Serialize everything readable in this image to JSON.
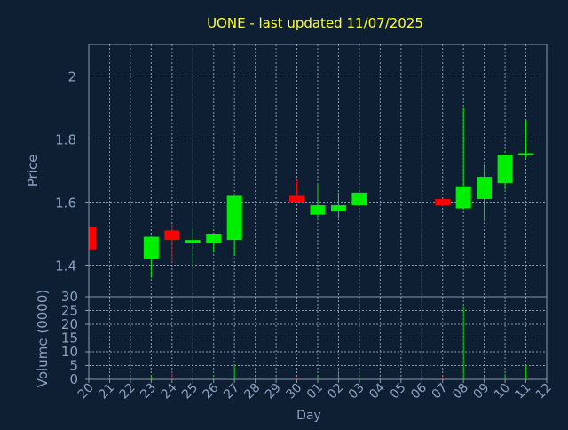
{
  "chart_data": {
    "type": "candlestick",
    "title": "UONE - last updated 11/07/2025",
    "xlabel": "Day",
    "colors": {
      "background": "#0f1f33",
      "title": "#ffff33",
      "axis_text": "#8aa0c0",
      "frame": "#8899aa",
      "grid": "#8899aa",
      "up": "#00ee00",
      "down": "#ff0000",
      "volume": "#00cc00"
    },
    "x_ticks": [
      "20",
      "21",
      "22",
      "23",
      "24",
      "25",
      "26",
      "27",
      "28",
      "29",
      "30",
      "01",
      "02",
      "03",
      "04",
      "05",
      "06",
      "07",
      "08",
      "09",
      "10",
      "11",
      "12"
    ],
    "price_panel": {
      "ylabel": "Price",
      "ylim": [
        1.3,
        2.1
      ],
      "yticks": [
        {
          "v": 1.4,
          "label": "1.4"
        },
        {
          "v": 1.6,
          "label": "1.6"
        },
        {
          "v": 1.8,
          "label": "1.8"
        },
        {
          "v": 2.0,
          "label": "2"
        }
      ]
    },
    "volume_panel": {
      "ylabel": "Volume (0000)",
      "ylim": [
        0,
        30
      ],
      "yticks": [
        {
          "v": 0,
          "label": "0"
        },
        {
          "v": 5,
          "label": "5"
        },
        {
          "v": 10,
          "label": "10"
        },
        {
          "v": 15,
          "label": "15"
        },
        {
          "v": 20,
          "label": "20"
        },
        {
          "v": 25,
          "label": "25"
        },
        {
          "v": 30,
          "label": "30"
        }
      ]
    },
    "candles": [
      {
        "day": "20",
        "open": 1.52,
        "high": 1.52,
        "low": 1.45,
        "close": 1.45,
        "volume": 0.3
      },
      {
        "day": "23",
        "open": 1.42,
        "high": 1.49,
        "low": 1.36,
        "close": 1.49,
        "volume": 1.2
      },
      {
        "day": "24",
        "open": 1.51,
        "high": 1.53,
        "low": 1.41,
        "close": 1.48,
        "volume": 2.5
      },
      {
        "day": "25",
        "open": 1.47,
        "high": 1.52,
        "low": 1.4,
        "close": 1.48,
        "volume": 0.8
      },
      {
        "day": "26",
        "open": 1.47,
        "high": 1.5,
        "low": 1.44,
        "close": 1.5,
        "volume": 0.6
      },
      {
        "day": "27",
        "open": 1.48,
        "high": 1.62,
        "low": 1.43,
        "close": 1.62,
        "volume": 5.0
      },
      {
        "day": "30",
        "open": 1.62,
        "high": 1.67,
        "low": 1.6,
        "close": 1.6,
        "volume": 0.7
      },
      {
        "day": "01",
        "open": 1.56,
        "high": 1.66,
        "low": 1.55,
        "close": 1.59,
        "volume": 1.0
      },
      {
        "day": "02",
        "open": 1.57,
        "high": 1.63,
        "low": 1.55,
        "close": 1.59,
        "volume": 3.0
      },
      {
        "day": "03",
        "open": 1.59,
        "high": 1.63,
        "low": 1.59,
        "close": 1.63,
        "volume": 0.6
      },
      {
        "day": "07",
        "open": 1.61,
        "high": 1.61,
        "low": 1.59,
        "close": 1.59,
        "volume": 0.8
      },
      {
        "day": "08",
        "open": 1.58,
        "high": 1.9,
        "low": 1.58,
        "close": 1.65,
        "volume": 26.5
      },
      {
        "day": "09",
        "open": 1.61,
        "high": 1.72,
        "low": 1.54,
        "close": 1.68,
        "volume": 1.5
      },
      {
        "day": "10",
        "open": 1.66,
        "high": 1.75,
        "low": 1.64,
        "close": 1.75,
        "volume": 2.0
      },
      {
        "day": "11",
        "open": 1.75,
        "high": 1.86,
        "low": 1.74,
        "close": 1.755,
        "volume": 5.0
      }
    ]
  }
}
